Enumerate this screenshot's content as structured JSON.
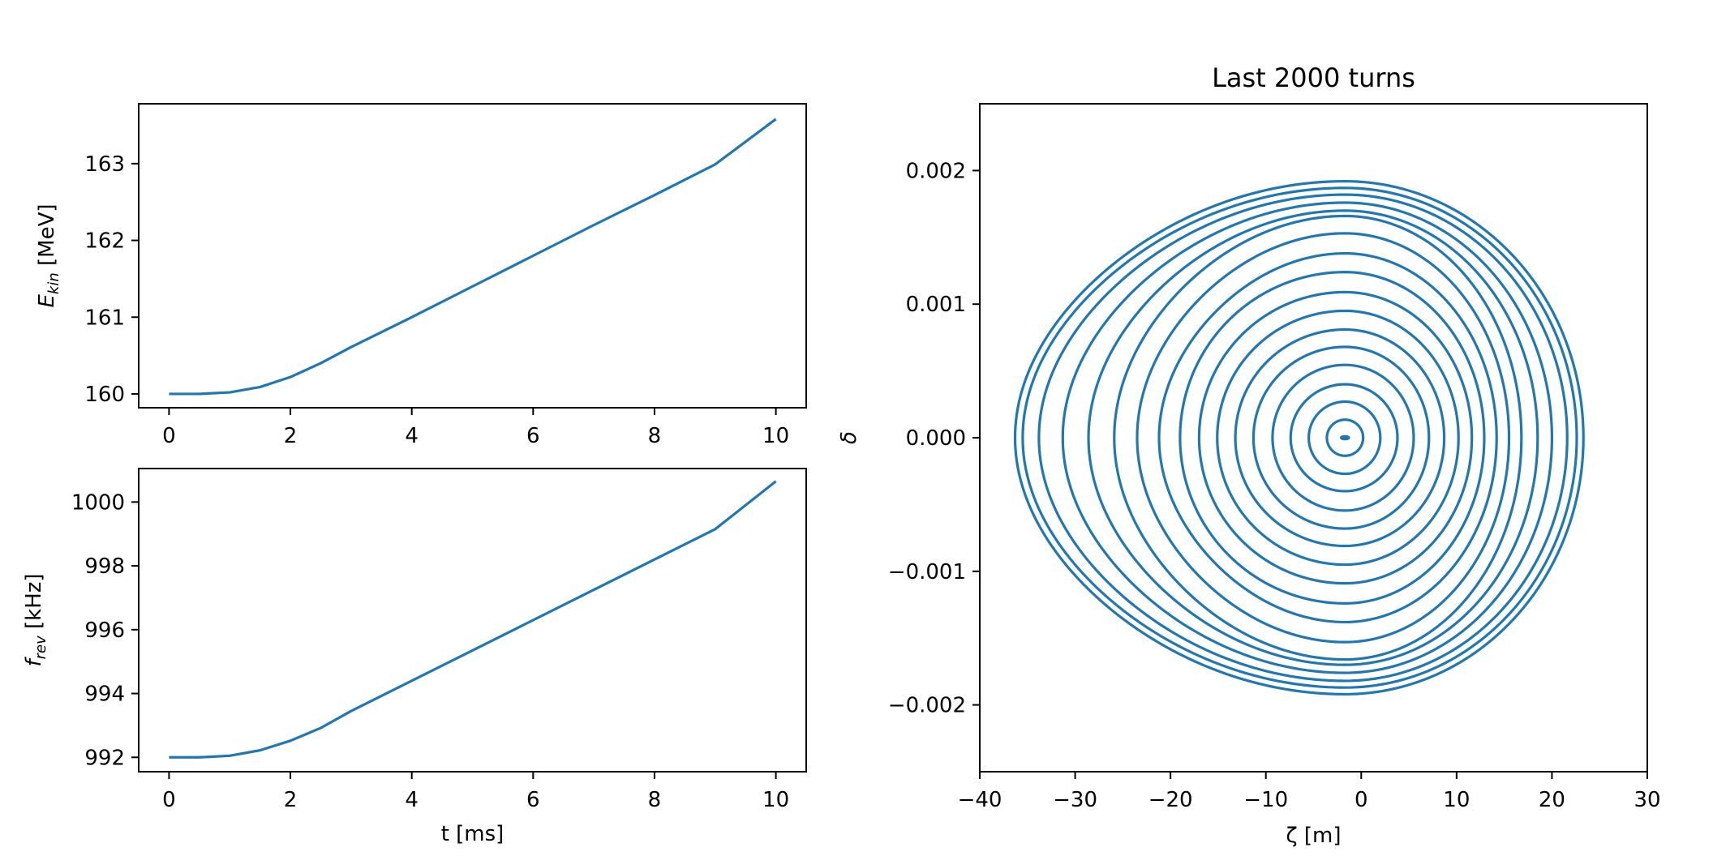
{
  "figure": {
    "background": "#ffffff",
    "series_color": "#1f77b4"
  },
  "chart_data": [
    {
      "type": "line",
      "id": "ekin",
      "title": "",
      "xlabel": "",
      "ylabel": {
        "main": "E",
        "sub": "kin",
        "unit": " [MeV]"
      },
      "xlim": [
        -0.5,
        10.5
      ],
      "ylim": [
        159.82,
        163.78
      ],
      "xticks": [
        0,
        2,
        4,
        6,
        8,
        10
      ],
      "xtick_labels": [
        "0",
        "2",
        "4",
        "6",
        "8",
        "10"
      ],
      "yticks": [
        160,
        161,
        162,
        163
      ],
      "ytick_labels": [
        "160",
        "161",
        "162",
        "163"
      ],
      "grid": false,
      "legend": "none",
      "series": [
        {
          "x": [
            0,
            0.5,
            1.0,
            1.5,
            2.0,
            2.5,
            3.0,
            4.0,
            5.0,
            6.0,
            7.0,
            8.0,
            9.0,
            10.0
          ],
          "y": [
            160.0,
            160.0,
            160.02,
            160.09,
            160.22,
            160.4,
            160.61,
            161.0,
            161.4,
            161.8,
            162.2,
            162.59,
            162.99,
            163.58
          ]
        }
      ]
    },
    {
      "type": "line",
      "id": "frev",
      "title": "",
      "xlabel": "t [ms]",
      "ylabel": {
        "main": "f",
        "sub": "rev",
        "unit": " [kHz]"
      },
      "xlim": [
        -0.5,
        10.5
      ],
      "ylim": [
        991.55,
        1001.05
      ],
      "xticks": [
        0,
        2,
        4,
        6,
        8,
        10
      ],
      "xtick_labels": [
        "0",
        "2",
        "4",
        "6",
        "8",
        "10"
      ],
      "yticks": [
        992,
        994,
        996,
        998,
        1000
      ],
      "ytick_labels": [
        "992",
        "994",
        "996",
        "998",
        "1000"
      ],
      "grid": false,
      "legend": "none",
      "series": [
        {
          "x": [
            0,
            0.5,
            1.0,
            1.5,
            2.0,
            2.5,
            3.0,
            4.0,
            5.0,
            6.0,
            7.0,
            8.0,
            9.0,
            10.0
          ],
          "y": [
            992.0,
            992.0,
            992.05,
            992.22,
            992.52,
            992.92,
            993.45,
            994.4,
            995.35,
            996.3,
            997.25,
            998.2,
            999.15,
            1000.65
          ]
        }
      ]
    },
    {
      "type": "line",
      "id": "phase-space",
      "title": "Last 2000 turns",
      "xlabel": "ζ [m]",
      "ylabel": "δ",
      "xlim": [
        -40,
        30
      ],
      "ylim": [
        -0.0025,
        0.0025
      ],
      "xticks": [
        -40,
        -30,
        -20,
        -10,
        0,
        10,
        20,
        30
      ],
      "xtick_labels": [
        "−40",
        "−30",
        "−20",
        "−10",
        "0",
        "10",
        "20",
        "30"
      ],
      "yticks": [
        -0.002,
        -0.001,
        0.0,
        0.001,
        0.002
      ],
      "ytick_labels": [
        "−0.002",
        "−0.001",
        "0.000",
        "0.001",
        "0.002"
      ],
      "grid": false,
      "legend": "none",
      "center": {
        "zeta": -1.7,
        "delta": 0.0
      },
      "orbits": [
        {
          "zeta_left": -2.1,
          "zeta_right": -1.3,
          "delta_max": 1e-05
        },
        {
          "zeta_left": -3.6,
          "zeta_right": 0.2,
          "delta_max": 0.000135
        },
        {
          "zeta_left": -5.5,
          "zeta_right": 2.0,
          "delta_max": 0.00027
        },
        {
          "zeta_left": -7.4,
          "zeta_right": 3.8,
          "delta_max": 0.0004
        },
        {
          "zeta_left": -9.3,
          "zeta_right": 5.5,
          "delta_max": 0.000545
        },
        {
          "zeta_left": -11.3,
          "zeta_right": 7.1,
          "delta_max": 0.00068
        },
        {
          "zeta_left": -13.2,
          "zeta_right": 8.7,
          "delta_max": 0.00081
        },
        {
          "zeta_left": -15.1,
          "zeta_right": 10.2,
          "delta_max": 0.00095
        },
        {
          "zeta_left": -17.0,
          "zeta_right": 11.6,
          "delta_max": 0.00109
        },
        {
          "zeta_left": -19.0,
          "zeta_right": 12.9,
          "delta_max": 0.00124
        },
        {
          "zeta_left": -21.2,
          "zeta_right": 14.2,
          "delta_max": 0.00138
        },
        {
          "zeta_left": -23.5,
          "zeta_right": 15.5,
          "delta_max": 0.00153
        },
        {
          "zeta_left": -25.9,
          "zeta_right": 16.8,
          "delta_max": 0.00166
        },
        {
          "zeta_left": -28.6,
          "zeta_right": 18.5,
          "delta_max": 0.0017
        },
        {
          "zeta_left": -31.3,
          "zeta_right": 20.0,
          "delta_max": 0.00176
        },
        {
          "zeta_left": -33.8,
          "zeta_right": 21.6,
          "delta_max": 0.00182
        },
        {
          "zeta_left": -35.5,
          "zeta_right": 22.6,
          "delta_max": 0.00187
        },
        {
          "zeta_left": -36.3,
          "zeta_right": 23.3,
          "delta_max": 0.00192
        }
      ]
    }
  ]
}
